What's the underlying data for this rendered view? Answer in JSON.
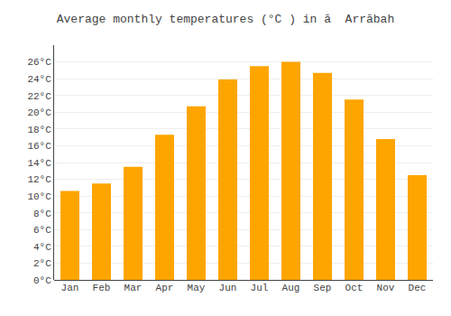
{
  "chart_data": {
    "type": "bar",
    "title": "Average monthly temperatures (°C ) in ā  Arrābah",
    "categories": [
      "Jan",
      "Feb",
      "Mar",
      "Apr",
      "May",
      "Jun",
      "Jul",
      "Aug",
      "Sep",
      "Oct",
      "Nov",
      "Dec"
    ],
    "values": [
      10.6,
      11.5,
      13.5,
      17.3,
      20.7,
      23.9,
      25.5,
      26.0,
      24.7,
      21.5,
      16.8,
      12.5
    ],
    "color": "#FFA500",
    "ylim": [
      0,
      28
    ],
    "yticks": [
      {
        "value": 0,
        "label": "0°C"
      },
      {
        "value": 2,
        "label": "2°C"
      },
      {
        "value": 4,
        "label": "4°C"
      },
      {
        "value": 6,
        "label": "6°C"
      },
      {
        "value": 8,
        "label": "8°C"
      },
      {
        "value": 10,
        "label": "10°C"
      },
      {
        "value": 12,
        "label": "12°C"
      },
      {
        "value": 14,
        "label": "14°C"
      },
      {
        "value": 16,
        "label": "16°C"
      },
      {
        "value": 18,
        "label": "18°C"
      },
      {
        "value": 20,
        "label": "20°C"
      },
      {
        "value": 22,
        "label": "22°C"
      },
      {
        "value": 24,
        "label": "24°C"
      },
      {
        "value": 26,
        "label": "26°C"
      }
    ],
    "grid": true
  }
}
